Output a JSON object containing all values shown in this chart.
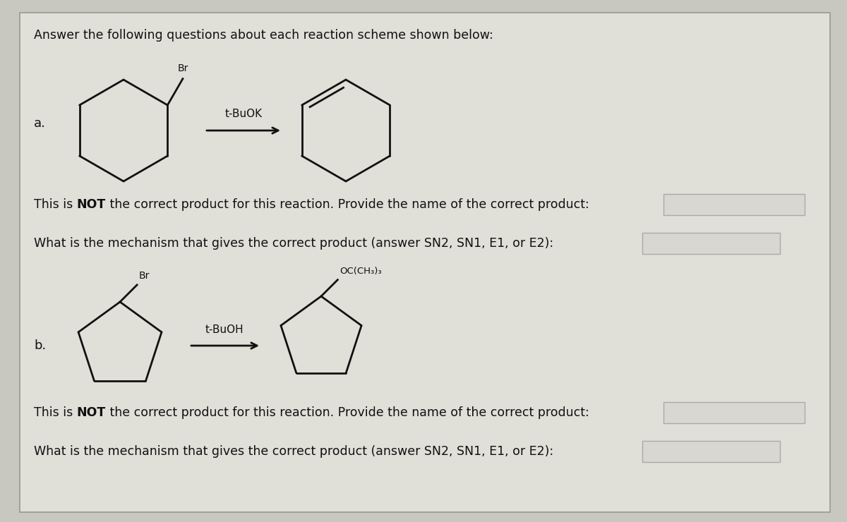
{
  "title": "Answer the following questions about each reaction scheme shown below:",
  "title_fontsize": 12.5,
  "bg_color": "#c8c8c0",
  "panel_bg": "#e0e0d8",
  "text_color": "#111111",
  "label_a": "a.",
  "label_b": "b.",
  "reagent_a": "t-BuOK",
  "reagent_b": "t-BuOH",
  "line_color": "#111111",
  "arrow_color": "#111111",
  "font_size_text": 12.5,
  "box_border": "#aaaaaa",
  "box_fill": "#d8d8d0"
}
